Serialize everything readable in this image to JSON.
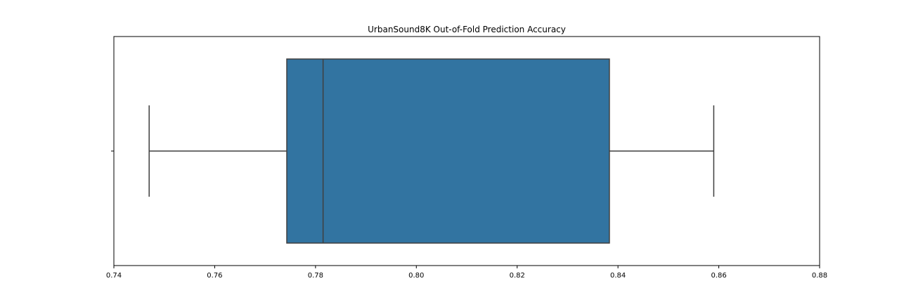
{
  "chart_data": {
    "type": "boxplot",
    "title": "UrbanSound8K Out-of-Fold Prediction Accuracy",
    "xlabel": "",
    "ylabel": "",
    "xlim": [
      0.74,
      0.88
    ],
    "xticks": [
      0.74,
      0.76,
      0.78,
      0.8,
      0.82,
      0.84,
      0.86,
      0.88
    ],
    "xtick_labels": [
      "0.74",
      "0.76",
      "0.78",
      "0.80",
      "0.82",
      "0.84",
      "0.86",
      "0.88"
    ],
    "grid": false,
    "box": {
      "whisker_low": 0.747,
      "q1": 0.7743,
      "median": 0.7815,
      "q3": 0.8383,
      "whisker_high": 0.859,
      "fill_color": "#3274a1",
      "line_color": "#3f3f3f"
    }
  }
}
